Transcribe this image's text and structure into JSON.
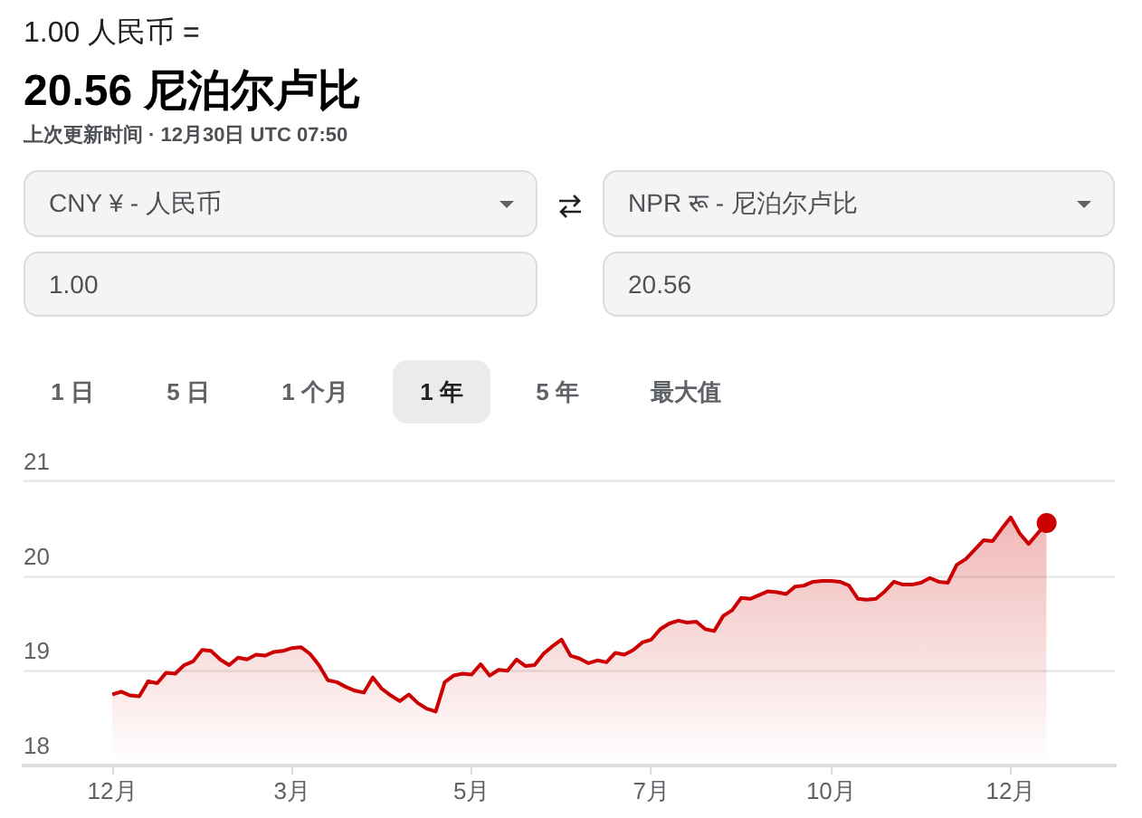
{
  "chart_data": {
    "type": "area",
    "subtitle": "1.00 人民币 =",
    "title": "20.56 尼泊尔卢比",
    "annotations": [
      "上次更新时间 · 12月30日 UTC 07:50",
      "CNY ¥ - 人民币",
      "NPR रू - 尼泊尔卢比",
      "1.00",
      "20.56",
      "1 日",
      "5 日",
      "1 个月",
      "1 年",
      "5 年",
      "最大值"
    ],
    "categories": [
      "12月",
      null,
      null,
      null,
      null,
      null,
      null,
      null,
      null,
      null,
      null,
      null,
      null,
      null,
      null,
      null,
      null,
      null,
      null,
      null,
      "3月",
      null,
      null,
      null,
      null,
      null,
      null,
      null,
      null,
      null,
      null,
      null,
      null,
      null,
      null,
      null,
      null,
      null,
      null,
      null,
      "5月",
      null,
      null,
      null,
      null,
      null,
      null,
      null,
      null,
      null,
      null,
      null,
      null,
      null,
      null,
      null,
      null,
      null,
      null,
      null,
      "7月",
      null,
      null,
      null,
      null,
      null,
      null,
      null,
      null,
      null,
      null,
      null,
      null,
      null,
      null,
      null,
      null,
      null,
      null,
      null,
      "10月",
      null,
      null,
      null,
      null,
      null,
      null,
      null,
      null,
      null,
      null,
      null,
      null,
      null,
      null,
      null,
      null,
      null,
      null,
      null,
      "12月",
      null,
      null,
      null,
      null
    ],
    "series": [
      {
        "type": "area",
        "color": "#cc0000",
        "values": [
          18.75,
          18.78,
          18.74,
          18.73,
          18.89,
          18.87,
          18.98,
          18.97,
          19.06,
          19.1,
          19.22,
          19.21,
          19.12,
          19.06,
          19.14,
          19.12,
          19.17,
          19.16,
          19.2,
          19.21,
          19.24,
          19.25,
          19.18,
          19.06,
          18.9,
          18.88,
          18.83,
          18.79,
          18.77,
          18.93,
          18.81,
          18.74,
          18.68,
          18.75,
          18.66,
          18.6,
          18.57,
          18.88,
          18.95,
          18.97,
          18.96,
          19.07,
          18.95,
          19.01,
          19.0,
          19.12,
          19.05,
          19.06,
          19.18,
          19.26,
          19.33,
          19.16,
          19.13,
          19.08,
          19.11,
          19.09,
          19.19,
          19.17,
          19.22,
          19.3,
          19.33,
          19.44,
          19.5,
          19.53,
          19.51,
          19.52,
          19.44,
          19.42,
          19.58,
          19.64,
          19.77,
          19.76,
          19.8,
          19.84,
          19.83,
          19.81,
          19.89,
          19.9,
          19.94,
          19.95,
          19.95,
          19.94,
          19.9,
          19.76,
          19.75,
          19.76,
          19.84,
          19.94,
          19.91,
          19.91,
          19.93,
          19.98,
          19.94,
          19.93,
          20.12,
          20.18,
          20.28,
          20.38,
          20.37,
          20.5,
          20.62,
          20.45,
          20.34,
          20.45,
          20.56
        ]
      },
      {
        "type": "scatter",
        "color": "#cc0000",
        "marker": "circle",
        "values": [
          null,
          null,
          null,
          null,
          null,
          null,
          null,
          null,
          null,
          null,
          null,
          null,
          null,
          null,
          null,
          null,
          null,
          null,
          null,
          null,
          null,
          null,
          null,
          null,
          null,
          null,
          null,
          null,
          null,
          null,
          null,
          null,
          null,
          null,
          null,
          null,
          null,
          null,
          null,
          null,
          null,
          null,
          null,
          null,
          null,
          null,
          null,
          null,
          null,
          null,
          null,
          null,
          null,
          null,
          null,
          null,
          null,
          null,
          null,
          null,
          null,
          null,
          null,
          null,
          null,
          null,
          null,
          null,
          null,
          null,
          null,
          null,
          null,
          null,
          null,
          null,
          null,
          null,
          null,
          null,
          null,
          null,
          null,
          null,
          null,
          null,
          null,
          null,
          null,
          null,
          null,
          null,
          null,
          null,
          null,
          null,
          null,
          null,
          null,
          null,
          null,
          null,
          null,
          null,
          20.56
        ]
      }
    ],
    "ylim": [
      18,
      21
    ],
    "yticks": [
      18,
      19,
      20,
      21
    ],
    "grid": "y"
  }
}
